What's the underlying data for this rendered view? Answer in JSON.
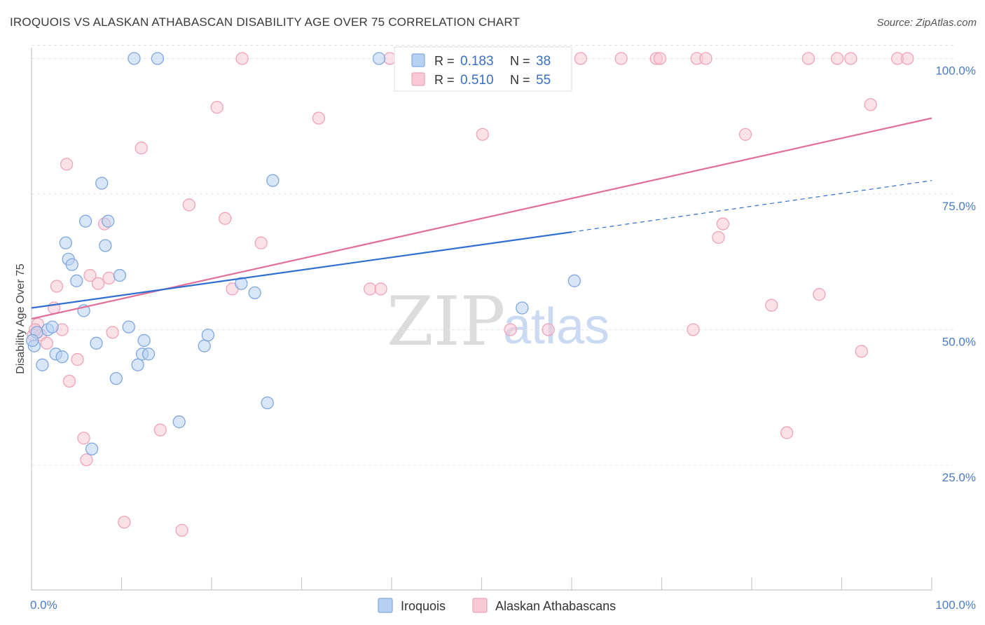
{
  "header": {
    "title": "IROQUOIS VS ALASKAN ATHABASCAN DISABILITY AGE OVER 75 CORRELATION CHART",
    "source": "Source: ZipAtlas.com"
  },
  "watermark": {
    "zip": "ZIP",
    "atlas": "atlas"
  },
  "chart_data": {
    "type": "scatter",
    "ylabel": "Disability Age Over 75",
    "xlim": [
      0,
      100
    ],
    "ylim": [
      2,
      102
    ],
    "x_tick_labels": {
      "min": "0.0%",
      "max": "100.0%"
    },
    "y_ticks": [
      {
        "value": 100,
        "label": "100.0%"
      },
      {
        "value": 75,
        "label": "75.0%"
      },
      {
        "value": 50,
        "label": "50.0%"
      },
      {
        "value": 25,
        "label": "25.0%"
      }
    ],
    "grid": true,
    "stats": [
      {
        "r_label": "R =",
        "r": "0.183",
        "n_label": "N =",
        "n": "38"
      },
      {
        "r_label": "R =",
        "r": "0.510",
        "n_label": "N =",
        "n": "55"
      }
    ],
    "series": [
      {
        "name": "Iroquois",
        "color": "#7fa8e0",
        "fill": "#b8d1f3",
        "line_color": "#2f6fcf",
        "trend": {
          "x0": 0,
          "y0": 54,
          "x1": 60,
          "y1": 68,
          "dash_x1": 100,
          "dash_y1": 77.5
        },
        "points": [
          [
            0.3,
            47
          ],
          [
            0.6,
            49.5
          ],
          [
            1.2,
            43.5
          ],
          [
            1.8,
            50
          ],
          [
            2.3,
            50.5
          ],
          [
            2.7,
            45.5
          ],
          [
            3.4,
            45
          ],
          [
            3.8,
            66
          ],
          [
            4.1,
            63
          ],
          [
            4.5,
            62
          ],
          [
            5,
            59
          ],
          [
            5.8,
            53.5
          ],
          [
            6,
            70
          ],
          [
            6.7,
            28
          ],
          [
            7.2,
            47.5
          ],
          [
            7.8,
            77
          ],
          [
            8.2,
            65.5
          ],
          [
            8.5,
            70
          ],
          [
            9.4,
            41
          ],
          [
            9.8,
            60
          ],
          [
            10.8,
            50.5
          ],
          [
            11.4,
            100
          ],
          [
            11.8,
            43.5
          ],
          [
            12.3,
            45.5
          ],
          [
            12.5,
            48
          ],
          [
            13,
            45.5
          ],
          [
            14,
            100
          ],
          [
            16.4,
            33
          ],
          [
            19.2,
            47
          ],
          [
            19.6,
            49
          ],
          [
            23.3,
            58.5
          ],
          [
            24.8,
            56.8
          ],
          [
            26.2,
            36.5
          ],
          [
            26.8,
            77.5
          ],
          [
            38.6,
            100
          ],
          [
            54.5,
            54
          ],
          [
            60.3,
            59
          ],
          [
            0.1,
            48
          ]
        ]
      },
      {
        "name": "Alaskan Athabascans",
        "color": "#f0a3b8",
        "fill": "#f8c9d6",
        "line_color": "#e06f97",
        "trend": {
          "x0": 0,
          "y0": 52,
          "x1": 100,
          "y1": 89
        },
        "points": [
          [
            0.2,
            49
          ],
          [
            0.7,
            51
          ],
          [
            1,
            49
          ],
          [
            1.7,
            47.5
          ],
          [
            2.5,
            54
          ],
          [
            2.8,
            58
          ],
          [
            3.4,
            50
          ],
          [
            3.9,
            80.5
          ],
          [
            4.2,
            40.5
          ],
          [
            5.1,
            44.5
          ],
          [
            5.8,
            30
          ],
          [
            6.1,
            26
          ],
          [
            6.5,
            60
          ],
          [
            7.4,
            58.5
          ],
          [
            8.1,
            69.5
          ],
          [
            8.6,
            59.5
          ],
          [
            9,
            49.5
          ],
          [
            10.3,
            14.5
          ],
          [
            12.2,
            83.5
          ],
          [
            14.3,
            31.5
          ],
          [
            16.7,
            13
          ],
          [
            17.5,
            73
          ],
          [
            20.6,
            91
          ],
          [
            21.5,
            70.5
          ],
          [
            22.3,
            57.5
          ],
          [
            23.4,
            100
          ],
          [
            25.5,
            66
          ],
          [
            31.9,
            89
          ],
          [
            37.6,
            57.5
          ],
          [
            38.8,
            57.5
          ],
          [
            39.8,
            100
          ],
          [
            50.1,
            86
          ],
          [
            53.2,
            50
          ],
          [
            57.4,
            50
          ],
          [
            61,
            100
          ],
          [
            65.5,
            100
          ],
          [
            69.4,
            100
          ],
          [
            69.8,
            100
          ],
          [
            73.5,
            50
          ],
          [
            73.9,
            100
          ],
          [
            74.9,
            100
          ],
          [
            76.3,
            67
          ],
          [
            76.8,
            69.5
          ],
          [
            79.3,
            86
          ],
          [
            82.2,
            54.5
          ],
          [
            83.9,
            31
          ],
          [
            86.3,
            100
          ],
          [
            87.5,
            56.5
          ],
          [
            89.5,
            100
          ],
          [
            91,
            100
          ],
          [
            92.2,
            46
          ],
          [
            93.2,
            91.5
          ],
          [
            96.2,
            100
          ],
          [
            97.3,
            100
          ],
          [
            0.4,
            50
          ]
        ]
      }
    ]
  }
}
